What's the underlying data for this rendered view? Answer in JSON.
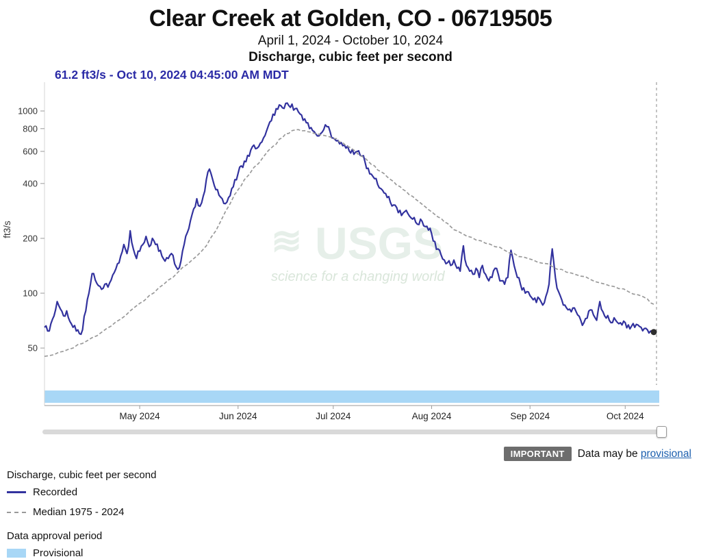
{
  "page": {
    "title": "Clear Creek at Golden, CO - 06719505",
    "subtitle": "April 1, 2024 - October 10, 2024",
    "parameter_label": "Discharge, cubic feet per second",
    "current_reading": "61.2 ft3/s - Oct 10, 2024 04:45:00 AM MDT"
  },
  "chart_data": {
    "type": "line",
    "title": "Discharge, cubic feet per second",
    "ylabel": "ft3/s",
    "y_scale": "log",
    "ylim": [
      40,
      1300
    ],
    "y_ticks": [
      50,
      100,
      200,
      400,
      600,
      800,
      1000
    ],
    "x_domain_days": [
      0,
      192
    ],
    "x_ticks": [
      {
        "day": 30,
        "label": "May 2024"
      },
      {
        "day": 61,
        "label": "Jun 2024"
      },
      {
        "day": 91,
        "label": "Jul 2024"
      },
      {
        "day": 122,
        "label": "Aug 2024"
      },
      {
        "day": 153,
        "label": "Sep 2024"
      },
      {
        "day": 183,
        "label": "Oct 2024"
      }
    ],
    "watermark": {
      "logo": "USGS",
      "tagline": "science for a changing world"
    },
    "latest_point": {
      "day": 192,
      "value": 61.2,
      "label": "61.2 ft3/s - Oct 10, 2024 04:45:00 AM MDT"
    },
    "approval_band": {
      "label": "Provisional",
      "start_day": 0,
      "end_day": 192
    },
    "series": [
      {
        "name": "Recorded",
        "color": "#32329e",
        "dash": "solid",
        "points": [
          [
            0,
            65
          ],
          [
            1,
            62
          ],
          [
            2,
            68
          ],
          [
            3,
            75
          ],
          [
            4,
            90
          ],
          [
            5,
            82
          ],
          [
            6,
            75
          ],
          [
            7,
            80
          ],
          [
            8,
            70
          ],
          [
            9,
            65
          ],
          [
            10,
            62
          ],
          [
            11,
            60
          ],
          [
            12,
            63
          ],
          [
            13,
            80
          ],
          [
            14,
            100
          ],
          [
            15,
            128
          ],
          [
            16,
            118
          ],
          [
            17,
            110
          ],
          [
            18,
            105
          ],
          [
            19,
            112
          ],
          [
            20,
            108
          ],
          [
            21,
            118
          ],
          [
            22,
            130
          ],
          [
            23,
            145
          ],
          [
            24,
            160
          ],
          [
            25,
            185
          ],
          [
            26,
            165
          ],
          [
            27,
            220
          ],
          [
            28,
            175
          ],
          [
            29,
            155
          ],
          [
            30,
            170
          ],
          [
            31,
            185
          ],
          [
            32,
            205
          ],
          [
            33,
            180
          ],
          [
            34,
            200
          ],
          [
            35,
            185
          ],
          [
            36,
            170
          ],
          [
            37,
            160
          ],
          [
            38,
            150
          ],
          [
            39,
            155
          ],
          [
            40,
            165
          ],
          [
            41,
            145
          ],
          [
            42,
            135
          ],
          [
            43,
            150
          ],
          [
            44,
            185
          ],
          [
            45,
            215
          ],
          [
            46,
            250
          ],
          [
            47,
            290
          ],
          [
            48,
            330
          ],
          [
            49,
            300
          ],
          [
            50,
            340
          ],
          [
            51,
            420
          ],
          [
            52,
            480
          ],
          [
            53,
            420
          ],
          [
            54,
            370
          ],
          [
            55,
            345
          ],
          [
            56,
            330
          ],
          [
            57,
            310
          ],
          [
            58,
            335
          ],
          [
            59,
            375
          ],
          [
            60,
            420
          ],
          [
            61,
            455
          ],
          [
            62,
            500
          ],
          [
            63,
            530
          ],
          [
            64,
            570
          ],
          [
            65,
            610
          ],
          [
            66,
            650
          ],
          [
            67,
            625
          ],
          [
            68,
            665
          ],
          [
            69,
            710
          ],
          [
            70,
            780
          ],
          [
            71,
            870
          ],
          [
            72,
            960
          ],
          [
            73,
            1030
          ],
          [
            74,
            1080
          ],
          [
            75,
            1040
          ],
          [
            76,
            1100
          ],
          [
            77,
            1070
          ],
          [
            78,
            1090
          ],
          [
            79,
            1030
          ],
          [
            80,
            990
          ],
          [
            81,
            950
          ],
          [
            82,
            905
          ],
          [
            83,
            860
          ],
          [
            84,
            810
          ],
          [
            85,
            770
          ],
          [
            86,
            730
          ],
          [
            87,
            750
          ],
          [
            88,
            790
          ],
          [
            89,
            820
          ],
          [
            90,
            770
          ],
          [
            91,
            710
          ],
          [
            92,
            685
          ],
          [
            93,
            660
          ],
          [
            94,
            645
          ],
          [
            95,
            625
          ],
          [
            96,
            605
          ],
          [
            97,
            615
          ],
          [
            98,
            595
          ],
          [
            99,
            605
          ],
          [
            100,
            565
          ],
          [
            101,
            525
          ],
          [
            102,
            485
          ],
          [
            103,
            450
          ],
          [
            104,
            425
          ],
          [
            105,
            395
          ],
          [
            106,
            375
          ],
          [
            107,
            355
          ],
          [
            108,
            335
          ],
          [
            109,
            315
          ],
          [
            110,
            305
          ],
          [
            111,
            295
          ],
          [
            112,
            285
          ],
          [
            113,
            275
          ],
          [
            114,
            285
          ],
          [
            115,
            265
          ],
          [
            116,
            255
          ],
          [
            117,
            245
          ],
          [
            118,
            238
          ],
          [
            119,
            248
          ],
          [
            120,
            232
          ],
          [
            121,
            222
          ],
          [
            122,
            212
          ],
          [
            123,
            192
          ],
          [
            124,
            175
          ],
          [
            125,
            162
          ],
          [
            126,
            152
          ],
          [
            127,
            147
          ],
          [
            128,
            142
          ],
          [
            129,
            152
          ],
          [
            130,
            137
          ],
          [
            131,
            132
          ],
          [
            132,
            182
          ],
          [
            133,
            142
          ],
          [
            134,
            132
          ],
          [
            135,
            127
          ],
          [
            136,
            137
          ],
          [
            137,
            122
          ],
          [
            138,
            142
          ],
          [
            139,
            127
          ],
          [
            140,
            117
          ],
          [
            141,
            122
          ],
          [
            142,
            137
          ],
          [
            143,
            127
          ],
          [
            144,
            117
          ],
          [
            145,
            112
          ],
          [
            146,
            122
          ],
          [
            147,
            172
          ],
          [
            148,
            142
          ],
          [
            149,
            122
          ],
          [
            150,
            112
          ],
          [
            151,
            107
          ],
          [
            152,
            102
          ],
          [
            153,
            97
          ],
          [
            154,
            92
          ],
          [
            155,
            89
          ],
          [
            156,
            93
          ],
          [
            157,
            86
          ],
          [
            158,
            96
          ],
          [
            159,
            112
          ],
          [
            160,
            175
          ],
          [
            161,
            122
          ],
          [
            162,
            102
          ],
          [
            163,
            92
          ],
          [
            164,
            86
          ],
          [
            165,
            81
          ],
          [
            166,
            79
          ],
          [
            167,
            83
          ],
          [
            168,
            76
          ],
          [
            169,
            71
          ],
          [
            170,
            69
          ],
          [
            171,
            73
          ],
          [
            172,
            81
          ],
          [
            173,
            76
          ],
          [
            174,
            71
          ],
          [
            175,
            90
          ],
          [
            176,
            79
          ],
          [
            177,
            73
          ],
          [
            178,
            71
          ],
          [
            179,
            69
          ],
          [
            180,
            71
          ],
          [
            181,
            68
          ],
          [
            182,
            67
          ],
          [
            183,
            69
          ],
          [
            184,
            67
          ],
          [
            185,
            66
          ],
          [
            186,
            65
          ],
          [
            187,
            67
          ],
          [
            188,
            65
          ],
          [
            189,
            64
          ],
          [
            190,
            63
          ],
          [
            191,
            62
          ],
          [
            192,
            61.2
          ]
        ]
      },
      {
        "name": "Median 1975 - 2024",
        "color": "#999999",
        "dash": "dashed",
        "points": [
          [
            0,
            45
          ],
          [
            3,
            46
          ],
          [
            6,
            48
          ],
          [
            9,
            50
          ],
          [
            12,
            53
          ],
          [
            15,
            57
          ],
          [
            18,
            61
          ],
          [
            21,
            66
          ],
          [
            24,
            72
          ],
          [
            27,
            80
          ],
          [
            30,
            88
          ],
          [
            33,
            97
          ],
          [
            36,
            107
          ],
          [
            39,
            118
          ],
          [
            42,
            130
          ],
          [
            45,
            144
          ],
          [
            48,
            160
          ],
          [
            51,
            182
          ],
          [
            54,
            220
          ],
          [
            57,
            280
          ],
          [
            60,
            350
          ],
          [
            61,
            370
          ],
          [
            63,
            420
          ],
          [
            66,
            490
          ],
          [
            69,
            560
          ],
          [
            72,
            640
          ],
          [
            74,
            700
          ],
          [
            76,
            750
          ],
          [
            78,
            780
          ],
          [
            80,
            790
          ],
          [
            82,
            780
          ],
          [
            84,
            765
          ],
          [
            86,
            750
          ],
          [
            88,
            735
          ],
          [
            90,
            720
          ],
          [
            92,
            705
          ],
          [
            94,
            670
          ],
          [
            96,
            635
          ],
          [
            98,
            600
          ],
          [
            100,
            565
          ],
          [
            102,
            530
          ],
          [
            104,
            500
          ],
          [
            106,
            465
          ],
          [
            108,
            435
          ],
          [
            110,
            410
          ],
          [
            112,
            385
          ],
          [
            114,
            362
          ],
          [
            116,
            340
          ],
          [
            118,
            318
          ],
          [
            120,
            298
          ],
          [
            122,
            280
          ],
          [
            124,
            262
          ],
          [
            126,
            246
          ],
          [
            128,
            232
          ],
          [
            130,
            220
          ],
          [
            133,
            206
          ],
          [
            136,
            196
          ],
          [
            139,
            188
          ],
          [
            142,
            180
          ],
          [
            145,
            172
          ],
          [
            148,
            165
          ],
          [
            151,
            158
          ],
          [
            154,
            152
          ],
          [
            157,
            146
          ],
          [
            160,
            140
          ],
          [
            163,
            135
          ],
          [
            166,
            129
          ],
          [
            169,
            124
          ],
          [
            172,
            119
          ],
          [
            175,
            114
          ],
          [
            178,
            110
          ],
          [
            181,
            106
          ],
          [
            184,
            102
          ],
          [
            187,
            98
          ],
          [
            190,
            93
          ],
          [
            192,
            87
          ]
        ]
      }
    ]
  },
  "notice": {
    "badge": "IMPORTANT",
    "text": "Data may be",
    "link": "provisional"
  },
  "legend": {
    "series_title": "Discharge, cubic feet per second",
    "recorded": "Recorded",
    "median": "Median 1975 - 2024",
    "approval_title": "Data approval period",
    "provisional": "Provisional"
  },
  "colors": {
    "recorded": "#32329e",
    "median": "#999999",
    "provisional_band": "#a8d7f6",
    "reading_text": "#2a2aa6",
    "link": "#1c5fae",
    "badge_bg": "#6d6d6d"
  }
}
